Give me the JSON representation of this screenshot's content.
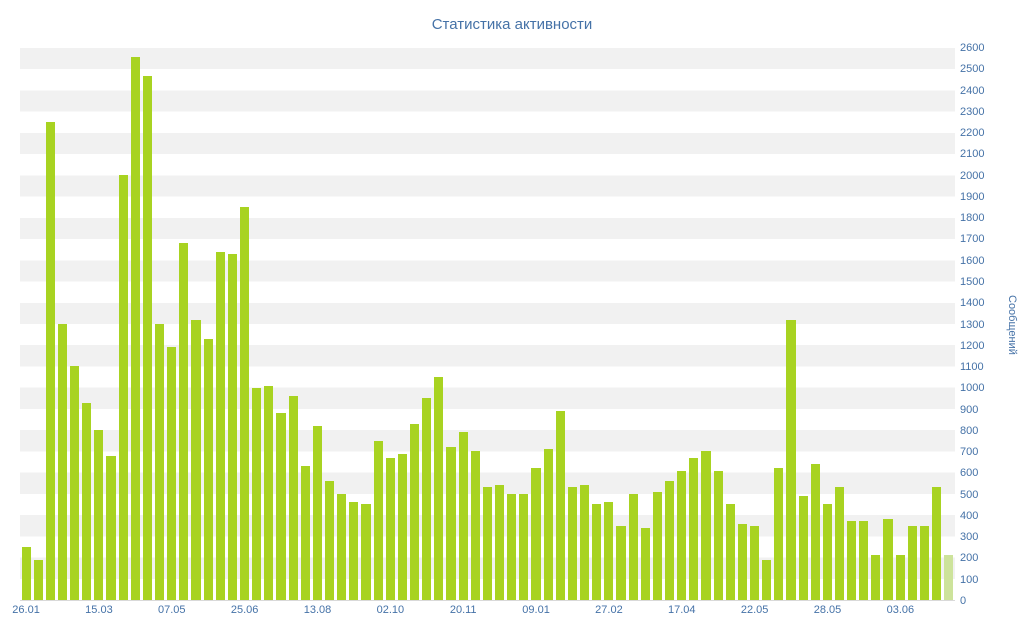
{
  "title": "Статистика активности",
  "chart_data": {
    "type": "bar",
    "title": "Статистика активности",
    "xlabel": "",
    "ylabel": "Сообщений",
    "ylim": [
      0,
      2600
    ],
    "y_tick_step": 100,
    "x_tick_labels": [
      "26.01",
      "15.03",
      "07.05",
      "25.06",
      "13.08",
      "02.10",
      "20.11",
      "09.01",
      "27.02",
      "17.04",
      "22.05",
      "28.05",
      "03.06"
    ],
    "x_tick_every": 6,
    "grid": "horizontal-bands",
    "legend": "none",
    "values": [
      250,
      190,
      2250,
      1300,
      1100,
      930,
      800,
      680,
      2000,
      2560,
      2470,
      1300,
      1190,
      1680,
      1320,
      1230,
      1640,
      1630,
      1850,
      1000,
      1010,
      880,
      960,
      630,
      820,
      560,
      500,
      460,
      450,
      750,
      670,
      690,
      830,
      950,
      1050,
      720,
      790,
      700,
      530,
      540,
      500,
      500,
      620,
      710,
      890,
      530,
      540,
      450,
      460,
      350,
      500,
      340,
      510,
      560,
      610,
      670,
      700,
      610,
      450,
      360,
      350,
      190,
      620,
      1320,
      490,
      640,
      450,
      530,
      370,
      370,
      210,
      380,
      210,
      350,
      350,
      530,
      210
    ],
    "colors": {
      "bar": "#a8d321",
      "last_bar": "#cde39b",
      "axis_text": "#4572a7",
      "band": "#f1f1f1",
      "background": "#ffffff"
    }
  }
}
